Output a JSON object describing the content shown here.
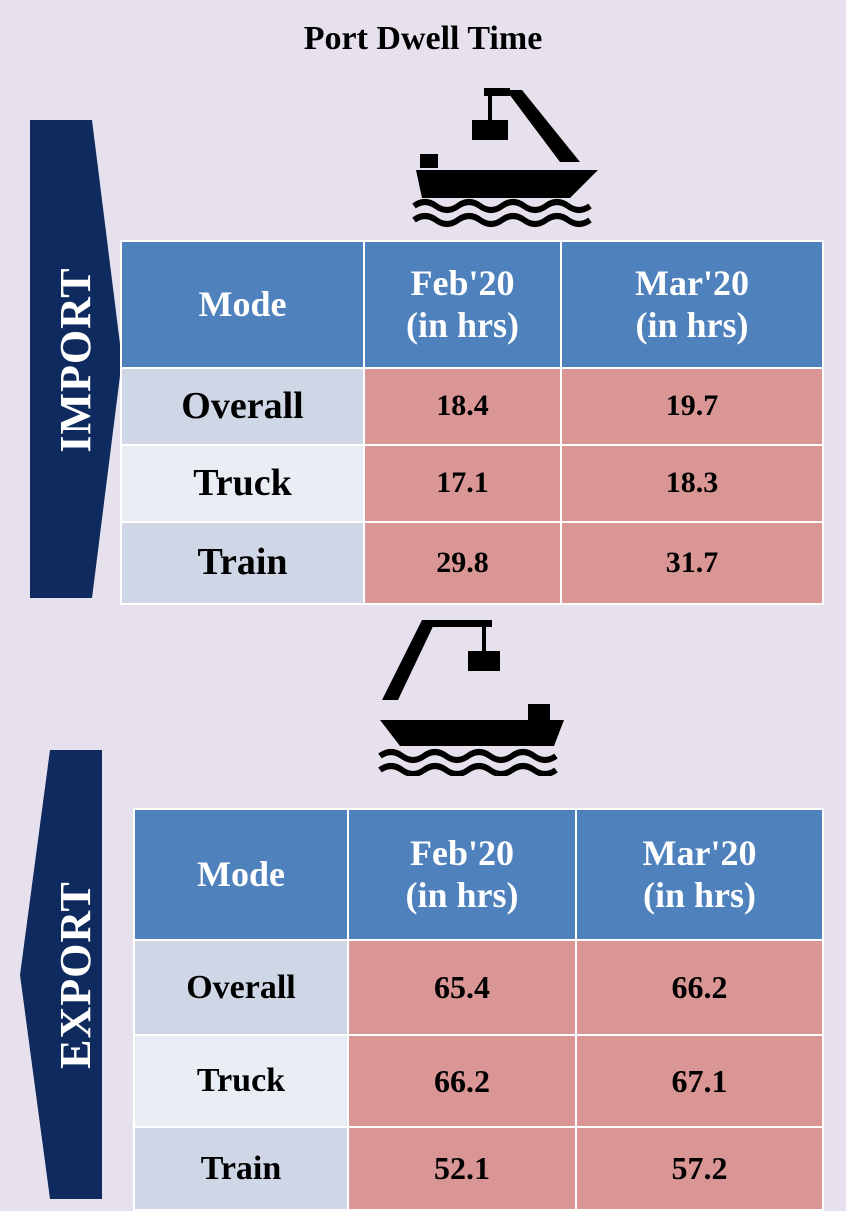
{
  "title": "Port Dwell Time",
  "import": {
    "label": "IMPORT",
    "header": [
      "Mode",
      "Feb'20\n(in hrs)",
      "Mar'20\n(in hrs)"
    ],
    "rows": [
      [
        "Overall",
        "18.4",
        "19.7"
      ],
      [
        "Truck",
        "17.1",
        "18.3"
      ],
      [
        "Train",
        "29.8",
        "31.7"
      ]
    ]
  },
  "export": {
    "label": "EXPORT",
    "header": [
      "Mode",
      "Feb'20\n(in hrs)",
      "Mar'20\n(in hrs)"
    ],
    "rows": [
      [
        "Overall",
        "65.4",
        "66.2"
      ],
      [
        "Truck",
        "66.2",
        "67.1"
      ],
      [
        "Train",
        "52.1",
        "57.2"
      ]
    ]
  }
}
